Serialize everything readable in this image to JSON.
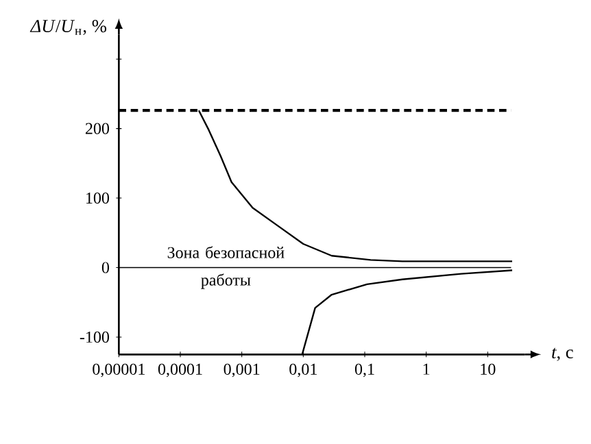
{
  "chart_data": {
    "type": "line",
    "log": "x",
    "xlabel": "*t*, с",
    "ylabel": "*ΔU*/*U*$_{н}$, %",
    "xlim": [
      1e-05,
      40
    ],
    "ylim": [
      -125,
      335
    ],
    "xticks": [
      {
        "value": 1e-05,
        "label": "0,00001"
      },
      {
        "value": 0.0001,
        "label": "0,0001"
      },
      {
        "value": 0.001,
        "label": "0,001"
      },
      {
        "value": 0.01,
        "label": "0,01"
      },
      {
        "value": 0.1,
        "label": "0,1"
      },
      1,
      10
    ],
    "yticks": [
      -100,
      0,
      100,
      200,
      {
        "value": 300,
        "label": null
      }
    ],
    "grid": false,
    "marker": "none",
    "series": [
      {
        "color": "#000000",
        "x": [
          0.0002,
          0.00029,
          0.00045,
          0.00068,
          0.0015,
          0.0036,
          0.01,
          0.029,
          0.125,
          0.41,
          25
        ],
        "values": [
          226,
          198,
          161,
          123,
          86,
          62,
          34,
          17,
          11,
          9,
          9
        ]
      },
      {
        "color": "#000000",
        "x": [
          0.0096,
          0.0156,
          0.029,
          0.109,
          0.41,
          3.7,
          25
        ],
        "values": [
          -125,
          -58,
          -39,
          -24,
          -17,
          -9,
          -4
        ]
      }
    ],
    "ref_lines": [
      {
        "axis": "y",
        "value": 226,
        "line_style": "dashed"
      },
      {
        "axis": "y",
        "value": 0,
        "line_style": "solid"
      }
    ],
    "annotations": [
      "Зона безопасной работы"
    ]
  }
}
